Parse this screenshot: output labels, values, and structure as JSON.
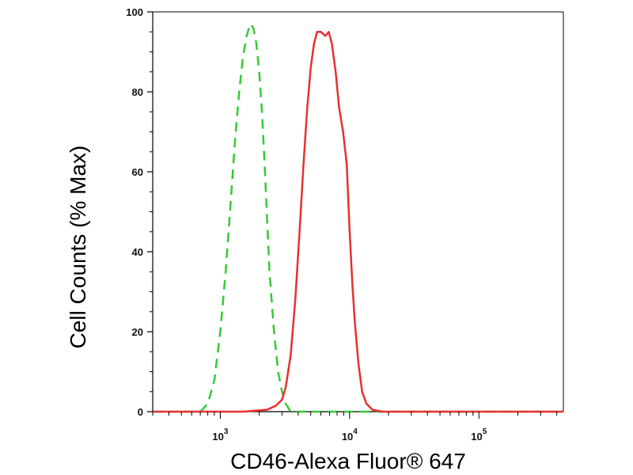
{
  "chart_data": {
    "type": "line",
    "title": "",
    "xlabel": "CD46-Alexa Fluor® 647",
    "ylabel": "Cell Counts (% Max)",
    "xscale": "log",
    "xlim": [
      300,
      450000
    ],
    "ylim": [
      0,
      100
    ],
    "grid": false,
    "legend": "none",
    "x_ticks": [
      {
        "value": 1000,
        "base": "10",
        "exp": "3"
      },
      {
        "value": 10000,
        "base": "10",
        "exp": "4"
      },
      {
        "value": 100000,
        "base": "10",
        "exp": "5"
      }
    ],
    "y_ticks": [
      0,
      20,
      40,
      60,
      80,
      100
    ],
    "series": [
      {
        "color": "#33cc33",
        "style": "dashed",
        "points": [
          [
            300,
            0
          ],
          [
            550,
            0
          ],
          [
            700,
            0
          ],
          [
            800,
            2
          ],
          [
            900,
            8
          ],
          [
            1000,
            20
          ],
          [
            1100,
            35
          ],
          [
            1200,
            52
          ],
          [
            1300,
            68
          ],
          [
            1400,
            80
          ],
          [
            1500,
            89
          ],
          [
            1600,
            94
          ],
          [
            1700,
            97
          ],
          [
            1800,
            96
          ],
          [
            1900,
            92
          ],
          [
            2000,
            85
          ],
          [
            2100,
            75
          ],
          [
            2200,
            62
          ],
          [
            2300,
            48
          ],
          [
            2400,
            35
          ],
          [
            2600,
            20
          ],
          [
            2800,
            10
          ],
          [
            3000,
            5
          ],
          [
            3200,
            2
          ],
          [
            3500,
            0
          ],
          [
            5000,
            0
          ],
          [
            20000,
            0
          ],
          [
            450000,
            0
          ]
        ]
      },
      {
        "color": "#e83030",
        "style": "solid",
        "points": [
          [
            300,
            0
          ],
          [
            1500,
            0
          ],
          [
            2300,
            0.5
          ],
          [
            2700,
            1.5
          ],
          [
            3000,
            3
          ],
          [
            3200,
            6
          ],
          [
            3500,
            14
          ],
          [
            3800,
            28
          ],
          [
            4100,
            45
          ],
          [
            4400,
            62
          ],
          [
            4700,
            76
          ],
          [
            5000,
            86
          ],
          [
            5300,
            92
          ],
          [
            5600,
            95
          ],
          [
            6000,
            95
          ],
          [
            6500,
            94
          ],
          [
            6900,
            95
          ],
          [
            7300,
            92
          ],
          [
            7800,
            85
          ],
          [
            8300,
            76
          ],
          [
            8900,
            70
          ],
          [
            9500,
            62
          ],
          [
            10000,
            45
          ],
          [
            10500,
            32
          ],
          [
            11000,
            22
          ],
          [
            11700,
            12
          ],
          [
            12500,
            5
          ],
          [
            13500,
            2
          ],
          [
            15000,
            0.5
          ],
          [
            18000,
            0
          ],
          [
            100000,
            0
          ],
          [
            450000,
            0
          ]
        ]
      }
    ]
  }
}
